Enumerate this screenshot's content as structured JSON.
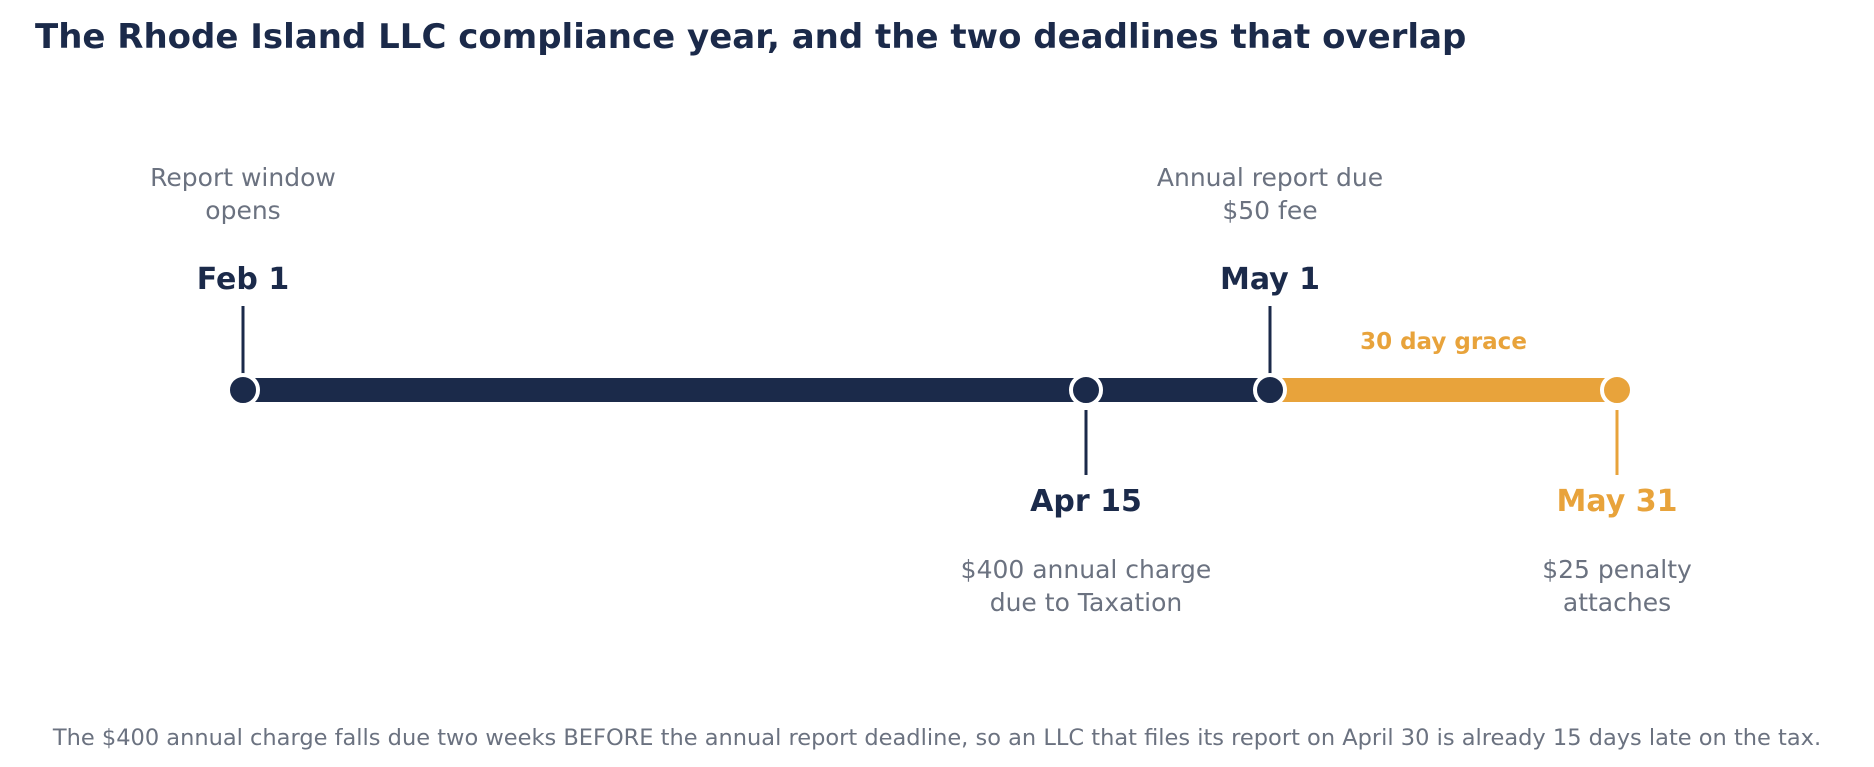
{
  "title": "The Rhode Island LLC compliance year, and the two deadlines that overlap",
  "colors": {
    "navy": "#1b2a4a",
    "orange": "#e8a33b",
    "gray_text": "#6b7280",
    "marker_outline": "#ffffff"
  },
  "milestones": [
    {
      "id": "feb1",
      "date": "Feb 1",
      "desc": [
        "Report window",
        "opens"
      ],
      "side": "above",
      "color": "navy"
    },
    {
      "id": "apr15",
      "date": "Apr 15",
      "desc": [
        "$400 annual charge",
        "due to Taxation"
      ],
      "side": "below",
      "color": "navy"
    },
    {
      "id": "may1",
      "date": "May 1",
      "desc": [
        "Annual report due",
        "$50 fee"
      ],
      "side": "above",
      "color": "navy"
    },
    {
      "id": "may31",
      "date": "May 31",
      "desc": [
        "$25 penalty",
        "attaches"
      ],
      "side": "below",
      "color": "orange"
    }
  ],
  "grace": {
    "label": "30 day grace",
    "from": "may1",
    "to": "may31",
    "color": "orange"
  },
  "footnote": "The $400 annual charge falls due two weeks BEFORE the annual report deadline, so an LLC that files its report on April 30 is already 15 days late on the tax."
}
